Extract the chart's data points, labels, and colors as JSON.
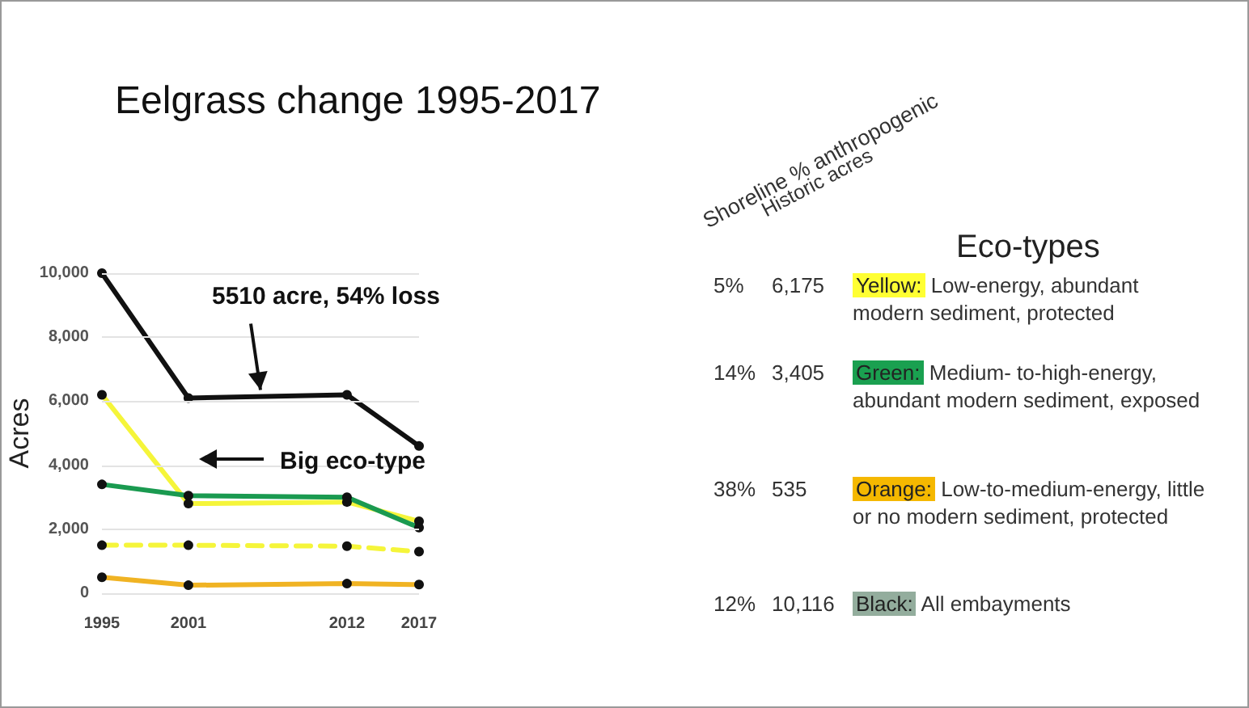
{
  "chart_data": {
    "type": "line",
    "title": "Eelgrass change 1995-2017",
    "ylabel": "Acres",
    "x": [
      1995,
      2001,
      2012,
      2017
    ],
    "xlim": [
      1995,
      2017
    ],
    "xticks": [
      1995,
      2001,
      2012,
      2017
    ],
    "ylim": [
      0,
      10000
    ],
    "yticks": [
      0,
      {
        "value": 2000,
        "label": "2,000"
      },
      {
        "value": 4000,
        "label": "4,000"
      },
      {
        "value": 6000,
        "label": "6,000"
      },
      {
        "value": 8000,
        "label": "8,000"
      },
      {
        "value": 10000,
        "label": "10,000"
      }
    ],
    "grid": "y",
    "marker": "circle",
    "series": [
      {
        "color": "#111111",
        "values": [
          10000,
          6100,
          6200,
          4600
        ]
      },
      {
        "color": "#f5f53a",
        "values": [
          6200,
          2800,
          2850,
          2250
        ]
      },
      {
        "color": "#1a9a50",
        "values": [
          3400,
          3050,
          3000,
          2050
        ]
      },
      {
        "color": "#f5f53a",
        "values": [
          1500,
          1500,
          1470,
          1300
        ],
        "line_style": "dashed"
      },
      {
        "color": "#f0b323",
        "values": [
          500,
          250,
          300,
          270
        ]
      }
    ],
    "annotations": [
      {
        "text": "5510 acre, 54% loss",
        "x": 2006,
        "y": 6150
      },
      "Big eco-type",
      "Shoreline % anthropogenic",
      "Historic acres",
      "Eco-types",
      "5%",
      "6,175",
      "Yellow:",
      "Low-energy, abundant modern sediment, protected",
      "14%",
      "3,405",
      "Green:",
      "Medium- to-high-energy, abundant modern sediment, exposed",
      "38%",
      "535",
      "Orange:",
      "Low-to-medium-energy, little or no modern sediment, protected",
      "12%",
      "10,116",
      "Black:",
      "All embayments"
    ]
  }
}
